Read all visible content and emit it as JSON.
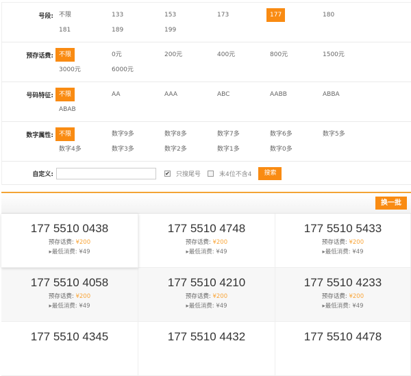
{
  "filters": [
    {
      "label": "号段:",
      "options": [
        "不限",
        "133",
        "153",
        "173",
        "177",
        "180",
        "181",
        "189",
        "199"
      ],
      "selected": "177"
    },
    {
      "label": "预存话费:",
      "options": [
        "不限",
        "0元",
        "200元",
        "400元",
        "800元",
        "1500元",
        "3000元",
        "6000元"
      ],
      "selected": "不限"
    },
    {
      "label": "号码特征:",
      "options": [
        "不限",
        "AA",
        "AAA",
        "ABC",
        "AABB",
        "ABBA",
        "ABAB"
      ],
      "selected": "不限"
    },
    {
      "label": "数字属性:",
      "options": [
        "不限",
        "数字9多",
        "数字8多",
        "数字7多",
        "数字6多",
        "数字5多",
        "数字4多",
        "数字3多",
        "数字2多",
        "数字1多",
        "数字0多"
      ],
      "selected": "不限"
    }
  ],
  "custom": {
    "label": "自定义:",
    "value": "",
    "tail_only": {
      "label": "只搜尾号",
      "checked": true
    },
    "no4": {
      "label": "末4位不含4",
      "checked": false
    },
    "search": "搜索"
  },
  "results": {
    "swap": "换一批",
    "prepay_label": "预存话费:",
    "min_label": "最低消费:",
    "items": [
      {
        "number": "177 5510 0438",
        "prepay": "¥200",
        "min": "¥49"
      },
      {
        "number": "177 5510 4748",
        "prepay": "¥200",
        "min": "¥49"
      },
      {
        "number": "177 5510 5433",
        "prepay": "¥200",
        "min": "¥49"
      },
      {
        "number": "177 5510 4058",
        "prepay": "¥200",
        "min": "¥49"
      },
      {
        "number": "177 5510 4210",
        "prepay": "¥200",
        "min": "¥49"
      },
      {
        "number": "177 5510 4233",
        "prepay": "¥200",
        "min": "¥49"
      },
      {
        "number": "177 5510 4345",
        "prepay": "",
        "min": ""
      },
      {
        "number": "177 5510 4432",
        "prepay": "",
        "min": ""
      },
      {
        "number": "177 5510 4478",
        "prepay": "",
        "min": ""
      }
    ]
  },
  "colors": {
    "accent": "#f98b12",
    "price": "#f9a63a"
  }
}
